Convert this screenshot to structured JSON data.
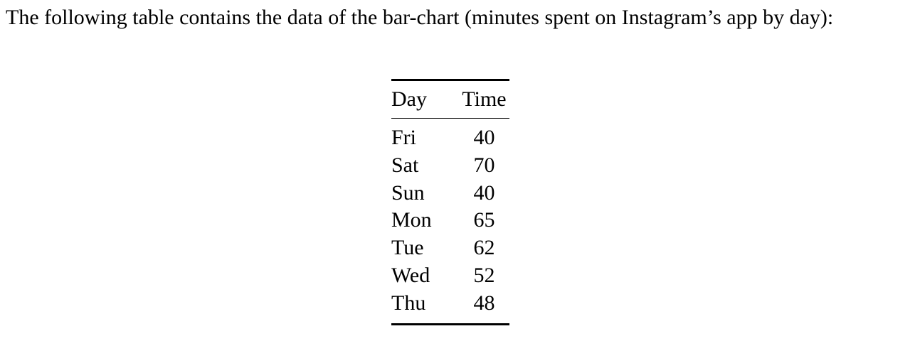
{
  "intro_text": "The following table contains the data of the bar-chart (minutes spent on Instagram’s app by day):",
  "table": {
    "headers": [
      "Day",
      "Time"
    ],
    "rows": [
      [
        "Fri",
        "40"
      ],
      [
        "Sat",
        "70"
      ],
      [
        "Sun",
        "40"
      ],
      [
        "Mon",
        "65"
      ],
      [
        "Tue",
        "62"
      ],
      [
        "Wed",
        "52"
      ],
      [
        "Thu",
        "48"
      ]
    ]
  }
}
